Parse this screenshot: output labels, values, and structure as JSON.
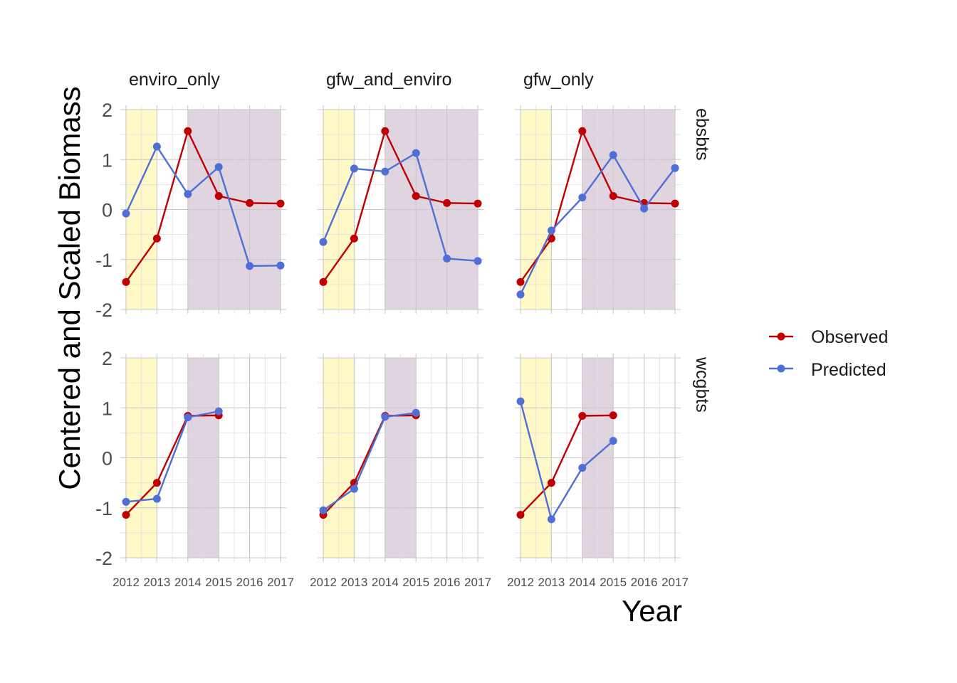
{
  "chart_data": {
    "type": "line",
    "title": "",
    "xlabel": "Year",
    "ylabel": "Centered and Scaled Biomass",
    "x": [
      2012,
      2013,
      2014,
      2015,
      2016,
      2017
    ],
    "ylim": [
      -2,
      2
    ],
    "yticks": [
      2,
      1,
      0,
      -1,
      -2
    ],
    "grid": true,
    "legend_position": "right",
    "columns": [
      "enviro_only",
      "gfw_and_enviro",
      "gfw_only"
    ],
    "rows": [
      "ebsbts",
      "wcgbts"
    ],
    "series_names": [
      "Observed",
      "Predicted"
    ],
    "colors": {
      "Observed": "#c00000",
      "Predicted": "#4f6fd6",
      "shade_early": "#fff9c7",
      "shade_late": "#d9ccd9"
    },
    "panels": [
      {
        "row": "ebsbts",
        "column": "enviro_only",
        "shade_early": [
          2012,
          2013
        ],
        "shade_late": [
          2014,
          2017
        ],
        "series": [
          {
            "name": "Observed",
            "values": [
              -1.45,
              -0.58,
              1.57,
              0.27,
              0.13,
              0.12
            ]
          },
          {
            "name": "Predicted",
            "values": [
              -0.08,
              1.26,
              0.31,
              0.85,
              -1.13,
              -1.12
            ]
          }
        ]
      },
      {
        "row": "ebsbts",
        "column": "gfw_and_enviro",
        "shade_early": [
          2012,
          2013
        ],
        "shade_late": [
          2014,
          2017
        ],
        "series": [
          {
            "name": "Observed",
            "values": [
              -1.45,
              -0.58,
              1.57,
              0.27,
              0.13,
              0.12
            ]
          },
          {
            "name": "Predicted",
            "values": [
              -0.65,
              0.82,
              0.76,
              1.13,
              -0.98,
              -1.03
            ]
          }
        ]
      },
      {
        "row": "ebsbts",
        "column": "gfw_only",
        "shade_early": [
          2012,
          2013
        ],
        "shade_late": [
          2014,
          2017
        ],
        "series": [
          {
            "name": "Observed",
            "values": [
              -1.45,
              -0.58,
              1.57,
              0.27,
              0.13,
              0.12
            ]
          },
          {
            "name": "Predicted",
            "values": [
              -1.7,
              -0.42,
              0.24,
              1.09,
              0.02,
              0.83
            ]
          }
        ]
      },
      {
        "row": "wcgbts",
        "column": "enviro_only",
        "shade_early": [
          2012,
          2013
        ],
        "shade_late": [
          2014,
          2015
        ],
        "series": [
          {
            "name": "Observed",
            "values": [
              -1.14,
              -0.5,
              0.84,
              0.85
            ]
          },
          {
            "name": "Predicted",
            "values": [
              -0.88,
              -0.82,
              0.81,
              0.93
            ]
          }
        ]
      },
      {
        "row": "wcgbts",
        "column": "gfw_and_enviro",
        "shade_early": [
          2012,
          2013
        ],
        "shade_late": [
          2014,
          2015
        ],
        "series": [
          {
            "name": "Observed",
            "values": [
              -1.14,
              -0.5,
              0.84,
              0.85
            ]
          },
          {
            "name": "Predicted",
            "values": [
              -1.05,
              -0.62,
              0.82,
              0.9
            ]
          }
        ]
      },
      {
        "row": "wcgbts",
        "column": "gfw_only",
        "shade_early": [
          2012,
          2013
        ],
        "shade_late": [
          2014,
          2015
        ],
        "series": [
          {
            "name": "Observed",
            "values": [
              -1.14,
              -0.5,
              0.84,
              0.85
            ]
          },
          {
            "name": "Predicted",
            "values": [
              1.13,
              -1.23,
              -0.2,
              0.34
            ]
          }
        ]
      }
    ]
  }
}
